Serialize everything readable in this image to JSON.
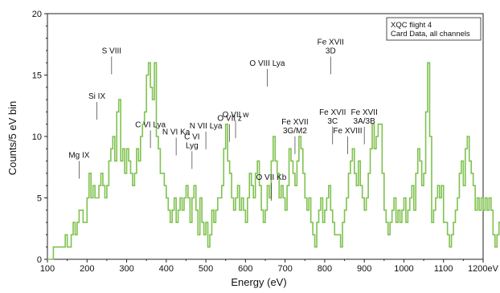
{
  "chart_data": {
    "type": "line",
    "style": "step",
    "xlabel": "Energy (eV)",
    "ylabel": "Counts/5 eV bin",
    "x_unit_suffix": "eV",
    "xlim": [
      100,
      1200
    ],
    "ylim": [
      0,
      20
    ],
    "xticks": [
      100,
      200,
      300,
      400,
      500,
      600,
      700,
      800,
      900,
      1000,
      1100,
      1200
    ],
    "yticks": [
      0,
      5,
      10,
      15,
      20
    ],
    "grid": false,
    "series_color": "#7fc24f",
    "legend": {
      "placement": "top-right",
      "lines": [
        "XQC flight 4",
        "Card Data, all channels"
      ]
    },
    "series": [
      {
        "x_start": 100,
        "bin_width": 5,
        "values": [
          0,
          0,
          0,
          1,
          1,
          1,
          1,
          1,
          1,
          2,
          1,
          1,
          2,
          3,
          2,
          3,
          4,
          4,
          3,
          3,
          5,
          7,
          5,
          6,
          5,
          5,
          6,
          7,
          6,
          5,
          6,
          8,
          9,
          10,
          8,
          12,
          13,
          8,
          9,
          7,
          9,
          8,
          7,
          6,
          7,
          9,
          8,
          10,
          11,
          12,
          15,
          16,
          14,
          13,
          16,
          10,
          9,
          7,
          7,
          6,
          5,
          4,
          3,
          4,
          5,
          3,
          4,
          5,
          4,
          5,
          6,
          5,
          3,
          5,
          6,
          4,
          2,
          5,
          3,
          2,
          3,
          1,
          2,
          4,
          3,
          4,
          5,
          5,
          6,
          9,
          11,
          8,
          7,
          5,
          4,
          5,
          6,
          4,
          5,
          4,
          3,
          5,
          7,
          6,
          5,
          7,
          8,
          6,
          4,
          3,
          4,
          6,
          5,
          8,
          10,
          8,
          7,
          5,
          6,
          5,
          4,
          6,
          9,
          8,
          7,
          6,
          8,
          10,
          9,
          7,
          5,
          4,
          5,
          3,
          2,
          1,
          3,
          4,
          5,
          3,
          4,
          5,
          6,
          4,
          3,
          2,
          2,
          2,
          1,
          3,
          4,
          5,
          7,
          8,
          9,
          7,
          6,
          8,
          6,
          5,
          4,
          5,
          7,
          9,
          11,
          9,
          10,
          11,
          11,
          7,
          4,
          3,
          2,
          3,
          4,
          5,
          3,
          4,
          3,
          4,
          5,
          3,
          4,
          5,
          6,
          4,
          7,
          9,
          8,
          6,
          7,
          12,
          16,
          10,
          3,
          4,
          5,
          6,
          5,
          6,
          3,
          3,
          2,
          1,
          2,
          3,
          4,
          5,
          7,
          8,
          6,
          9,
          10,
          8,
          7,
          6,
          4,
          5,
          4,
          5,
          4,
          5,
          4,
          5,
          4,
          2,
          1,
          2,
          3,
          4,
          5,
          4,
          5,
          6,
          4,
          6,
          7,
          9,
          11,
          8,
          9,
          7,
          5,
          4,
          3,
          4,
          5,
          4,
          3,
          4,
          5,
          4,
          2,
          3,
          4,
          5,
          4,
          5,
          3,
          4,
          5,
          3,
          4,
          5,
          6,
          4,
          5,
          4,
          3,
          4,
          5,
          2,
          1,
          0,
          0
        ]
      }
    ],
    "annotations": [
      {
        "lines": [
          "Mg IX"
        ],
        "at": 180,
        "top": 8.0
      },
      {
        "lines": [
          "Si IX"
        ],
        "at": 225,
        "top": 12.8
      },
      {
        "lines": [
          "S VIII"
        ],
        "at": 262,
        "top": 16.5
      },
      {
        "lines": [
          "C VI Lya"
        ],
        "at": 360,
        "top": 10.5
      },
      {
        "lines": [
          "N VI Ka"
        ],
        "at": 425,
        "top": 9.9
      },
      {
        "lines": [
          "C VI",
          "Lyg"
        ],
        "at": 465,
        "top": 8.8
      },
      {
        "lines": [
          "N VII Lya"
        ],
        "at": 500,
        "top": 10.4
      },
      {
        "lines": [
          "O VII z"
        ],
        "at": 560,
        "top": 11.0
      },
      {
        "lines": [
          "O VII w"
        ],
        "at": 575,
        "top": 11.3
      },
      {
        "lines": [
          "O VIII Lya"
        ],
        "at": 655,
        "top": 15.5
      },
      {
        "lines": [
          "O VII Kb"
        ],
        "at": 665,
        "top": 6.2
      },
      {
        "lines": [
          "Fe XVII",
          "3G/M2"
        ],
        "at": 725,
        "top": 10.0
      },
      {
        "lines": [
          "Fe XVII",
          "3D"
        ],
        "at": 815,
        "top": 16.5
      },
      {
        "lines": [
          "Fe XVII",
          "3C"
        ],
        "at": 820,
        "top": 10.8
      },
      {
        "lines": [
          "Fe XVIII"
        ],
        "at": 858,
        "top": 10.0
      },
      {
        "lines": [
          "Fe XVII",
          "3A/3B"
        ],
        "at": 900,
        "top": 10.8
      }
    ]
  }
}
